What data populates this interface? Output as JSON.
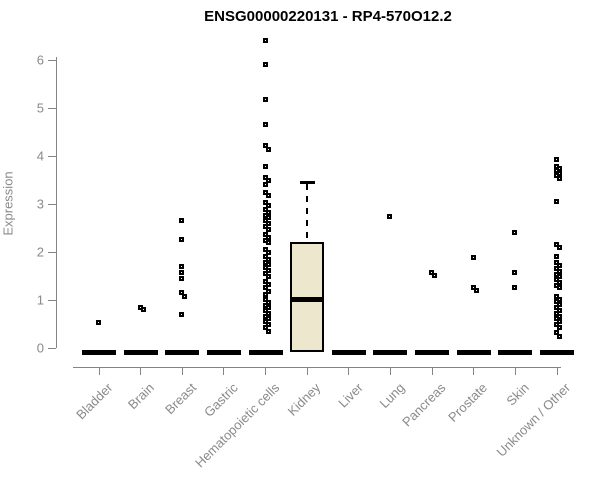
{
  "title": "ENSG00000220131 - RP4-570O12.2",
  "chart_data": {
    "type": "boxplot",
    "title": "ENSG00000220131 - RP4-570O12.2",
    "xlabel": "",
    "ylabel": "Expression",
    "ylim": [
      0,
      6.5
    ],
    "yticks": [
      0,
      1,
      2,
      3,
      4,
      5,
      6
    ],
    "grid": false,
    "legend": false,
    "categories": [
      "Bladder",
      "Brain",
      "Breast",
      "Gastric",
      "Hematopoietic cells",
      "Kidney",
      "Liver",
      "Lung",
      "Pancreas",
      "Prostate",
      "Skin",
      "Unknown / Other"
    ],
    "series": [
      {
        "category": "Bladder",
        "box": {
          "median": 0,
          "q1": 0,
          "q3": 0,
          "collapsed_at_zero": true
        },
        "outliers": [
          0.52
        ]
      },
      {
        "category": "Brain",
        "box": {
          "median": 0,
          "q1": 0,
          "q3": 0,
          "collapsed_at_zero": true
        },
        "outliers": [
          0.83,
          0.8
        ]
      },
      {
        "category": "Breast",
        "box": {
          "median": 0,
          "q1": 0,
          "q3": 0,
          "collapsed_at_zero": true
        },
        "outliers": [
          2.65,
          2.25,
          1.69,
          1.56,
          1.44,
          1.14,
          1.06,
          0.69
        ]
      },
      {
        "category": "Gastric",
        "box": {
          "median": 0,
          "q1": 0,
          "q3": 0,
          "collapsed_at_zero": true
        },
        "outliers": []
      },
      {
        "category": "Hematopoietic cells",
        "box": {
          "median": 0,
          "q1": 0,
          "q3": 0,
          "collapsed_at_zero": true
        },
        "outliers": [
          6.4,
          5.9,
          5.17,
          4.65,
          4.21,
          4.13,
          3.78,
          3.54,
          3.47,
          3.4,
          3.23,
          3.16,
          3.02,
          2.96,
          2.88,
          2.82,
          2.76,
          2.7,
          2.64,
          2.58,
          2.52,
          2.46,
          2.35,
          2.29,
          2.23,
          2.19,
          2.04,
          1.98,
          1.9,
          1.84,
          1.78,
          1.72,
          1.66,
          1.6,
          1.54,
          1.48,
          1.38,
          1.32,
          1.26,
          1.17,
          1.11,
          1.0,
          0.94,
          0.88,
          0.83,
          0.77,
          0.71,
          0.65,
          0.6,
          0.54,
          0.48,
          0.42,
          0.33
        ]
      },
      {
        "category": "Kidney",
        "box": {
          "median": 1.02,
          "q1": 0,
          "q3": 2.2,
          "whisker_high": 3.46,
          "whisker_low": 0,
          "collapsed_at_zero": false
        },
        "outliers": []
      },
      {
        "category": "Liver",
        "box": {
          "median": 0,
          "q1": 0,
          "q3": 0,
          "collapsed_at_zero": true
        },
        "outliers": []
      },
      {
        "category": "Lung",
        "box": {
          "median": 0,
          "q1": 0,
          "q3": 0,
          "collapsed_at_zero": true
        },
        "outliers": [
          2.72
        ]
      },
      {
        "category": "Pancreas",
        "box": {
          "median": 0,
          "q1": 0,
          "q3": 0,
          "collapsed_at_zero": true
        },
        "outliers": [
          1.57,
          1.5
        ]
      },
      {
        "category": "Prostate",
        "box": {
          "median": 0,
          "q1": 0,
          "q3": 0,
          "collapsed_at_zero": true
        },
        "outliers": [
          1.87,
          1.25,
          1.19
        ]
      },
      {
        "category": "Skin",
        "box": {
          "median": 0,
          "q1": 0,
          "q3": 0,
          "collapsed_at_zero": true
        },
        "outliers": [
          2.39,
          1.56,
          1.26
        ]
      },
      {
        "category": "Unknown / Other",
        "box": {
          "median": 0,
          "q1": 0,
          "q3": 0,
          "collapsed_at_zero": true
        },
        "outliers": [
          3.92,
          3.78,
          3.73,
          3.68,
          3.63,
          3.58,
          3.53,
          3.04,
          2.15,
          2.08,
          1.9,
          1.77,
          1.71,
          1.65,
          1.59,
          1.53,
          1.47,
          1.41,
          1.35,
          1.29,
          1.25,
          1.07,
          1.01,
          0.95,
          0.89,
          0.83,
          0.77,
          0.71,
          0.65,
          0.6,
          0.55,
          0.48,
          0.42,
          0.31,
          0.23
        ]
      }
    ],
    "colors": {
      "point": "#000000",
      "box_fill": "#EDE8CD",
      "box_border": "#000000",
      "axis_line": "#848484",
      "tick_label": "#8A8A8A",
      "title": "#000000"
    }
  }
}
